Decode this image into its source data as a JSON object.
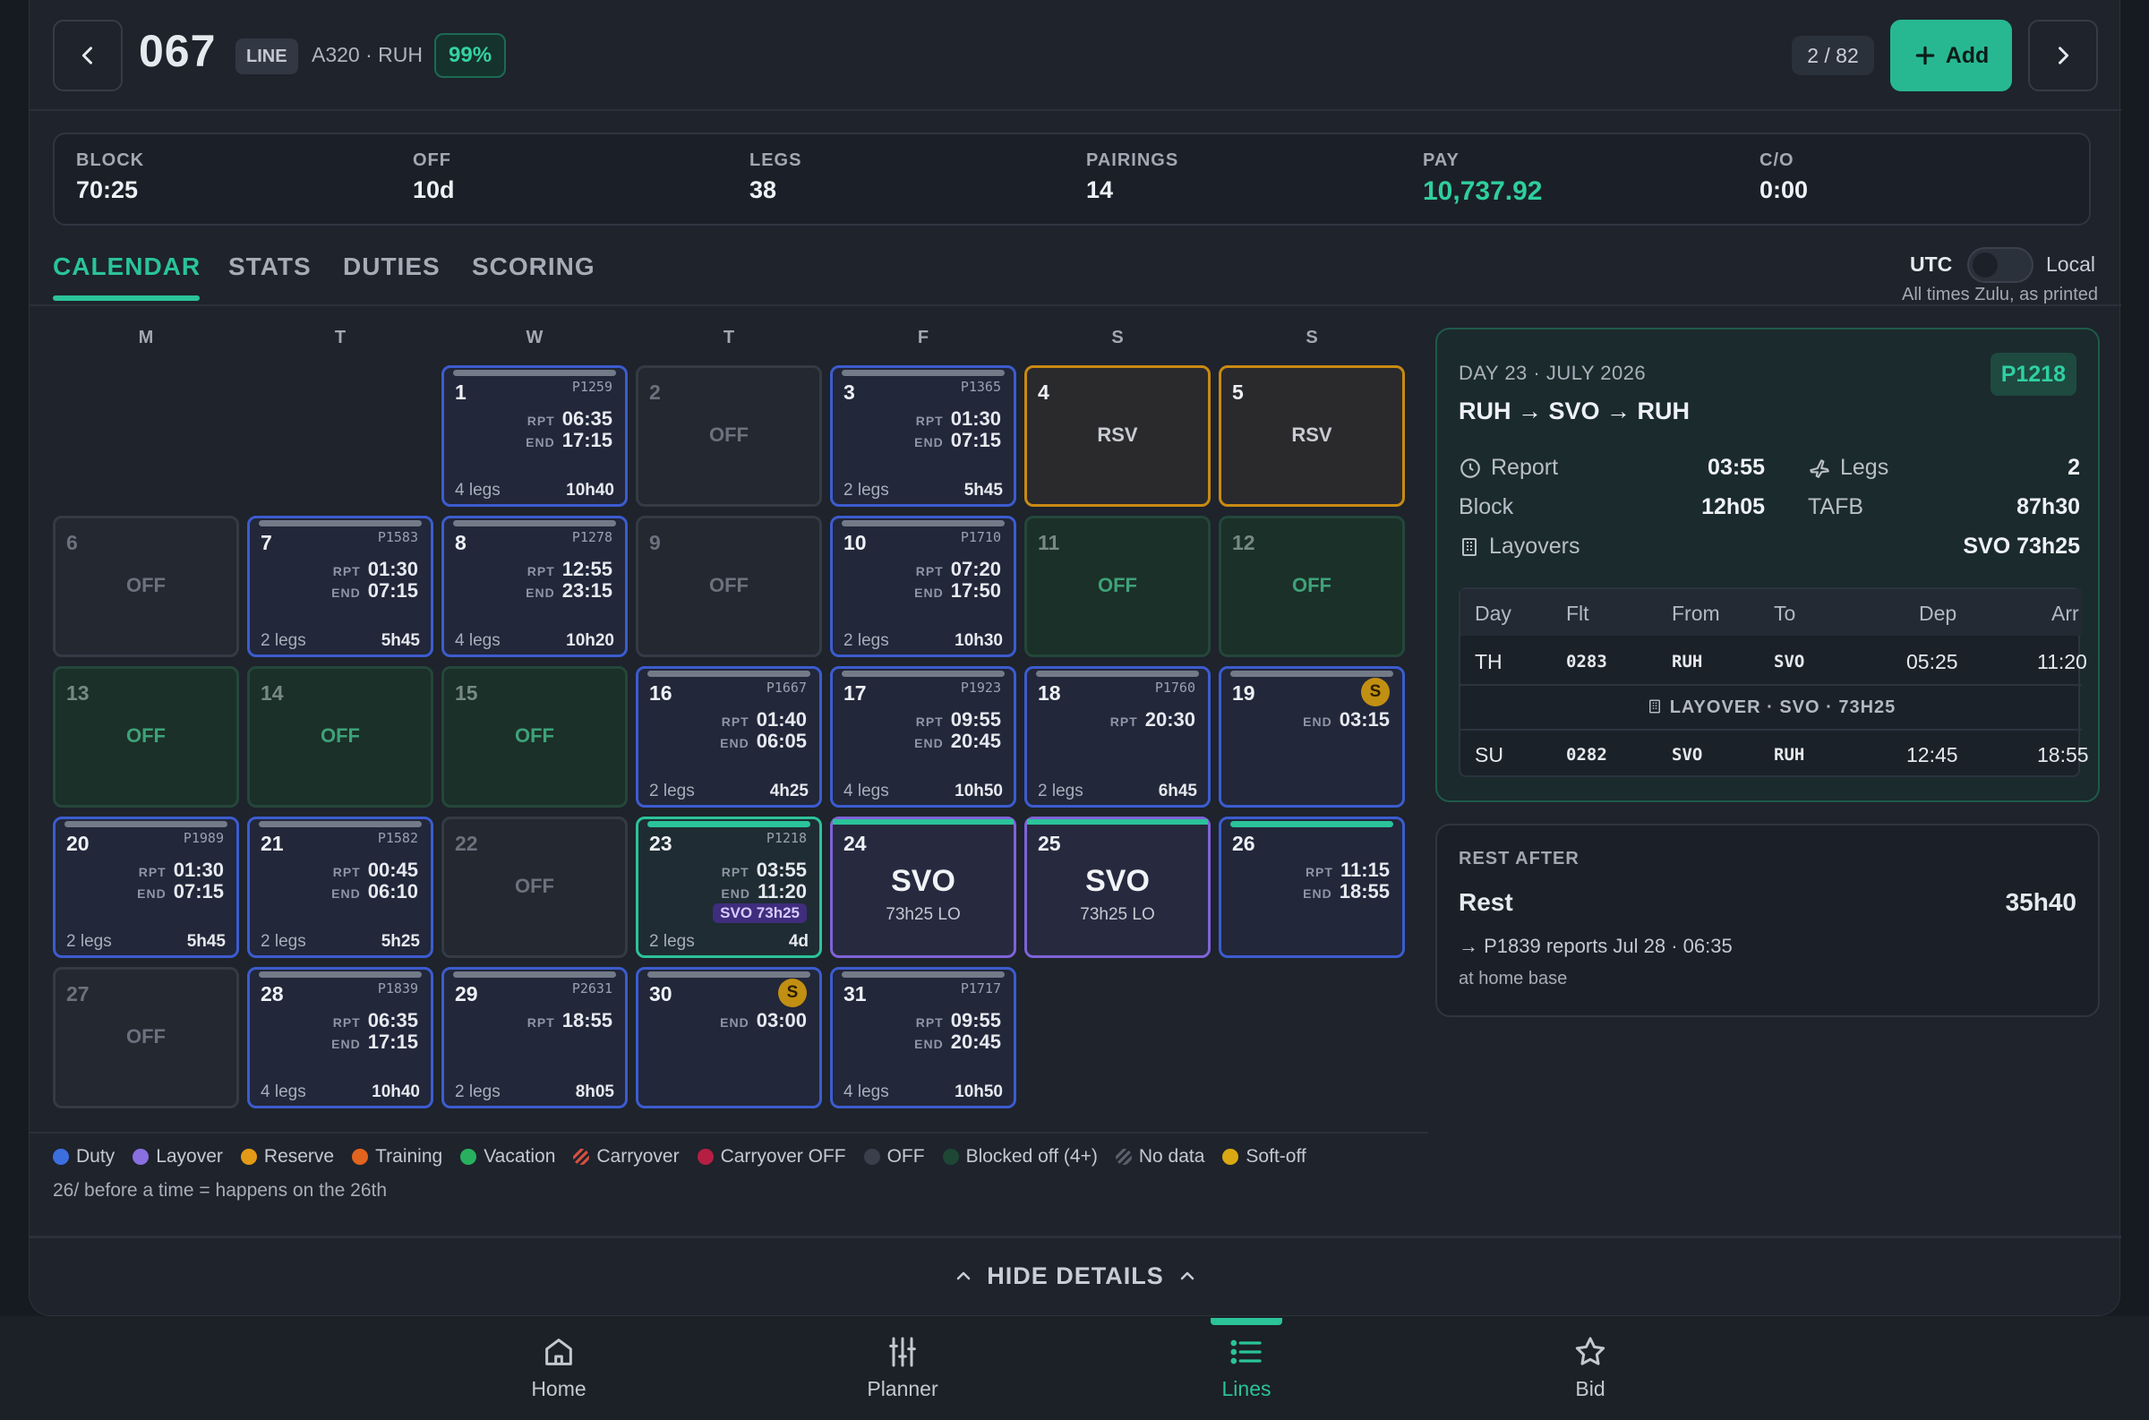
{
  "header": {
    "back_icon": "chevron-left-icon",
    "line_number": "067",
    "line_tag": "LINE",
    "subtitle": "A320 · RUH",
    "match_pct": "99%",
    "counter": "2 / 82",
    "add_label": "Add",
    "next_icon": "chevron-right-icon"
  },
  "stats": [
    {
      "label": "BLOCK",
      "value": "70:25"
    },
    {
      "label": "OFF",
      "value": "10d"
    },
    {
      "label": "LEGS",
      "value": "38"
    },
    {
      "label": "PAIRINGS",
      "value": "14"
    },
    {
      "label": "PAY",
      "value": "10,737.92"
    },
    {
      "label": "C/O",
      "value": "0:00"
    }
  ],
  "tabs": [
    "CALENDAR",
    "STATS",
    "DUTIES",
    "SCORING"
  ],
  "active_tab": "CALENDAR",
  "time_toggle": {
    "left": "UTC",
    "right": "Local",
    "note": "All times Zulu, as printed",
    "selected": "UTC"
  },
  "weekdays": [
    "M",
    "T",
    "W",
    "T",
    "F",
    "S",
    "S"
  ],
  "calendar": [
    {
      "day": "1",
      "type": "duty",
      "pairing": "P1259",
      "rpt": "06:35",
      "end": "17:15",
      "legs": "4 legs",
      "dur": "10h40"
    },
    {
      "day": "2",
      "type": "off",
      "label": "OFF"
    },
    {
      "day": "3",
      "type": "duty",
      "pairing": "P1365",
      "rpt": "01:30",
      "end": "07:15",
      "legs": "2 legs",
      "dur": "5h45"
    },
    {
      "day": "4",
      "type": "reserve",
      "label": "RSV"
    },
    {
      "day": "5",
      "type": "reserve",
      "label": "RSV"
    },
    {
      "day": "6",
      "type": "off",
      "label": "OFF"
    },
    {
      "day": "7",
      "type": "duty",
      "pairing": "P1583",
      "rpt": "01:30",
      "end": "07:15",
      "legs": "2 legs",
      "dur": "5h45"
    },
    {
      "day": "8",
      "type": "duty",
      "pairing": "P1278",
      "rpt": "12:55",
      "end": "23:15",
      "legs": "4 legs",
      "dur": "10h20"
    },
    {
      "day": "9",
      "type": "off",
      "label": "OFF"
    },
    {
      "day": "10",
      "type": "duty",
      "pairing": "P1710",
      "rpt": "07:20",
      "end": "17:50",
      "legs": "2 legs",
      "dur": "10h30"
    },
    {
      "day": "11",
      "type": "blocked",
      "label": "OFF"
    },
    {
      "day": "12",
      "type": "blocked",
      "label": "OFF"
    },
    {
      "day": "13",
      "type": "blocked",
      "label": "OFF"
    },
    {
      "day": "14",
      "type": "blocked",
      "label": "OFF"
    },
    {
      "day": "15",
      "type": "blocked",
      "label": "OFF"
    },
    {
      "day": "16",
      "type": "duty",
      "pairing": "P1667",
      "rpt": "01:40",
      "end": "06:05",
      "legs": "2 legs",
      "dur": "4h25"
    },
    {
      "day": "17",
      "type": "duty",
      "pairing": "P1923",
      "rpt": "09:55",
      "end": "20:45",
      "legs": "4 legs",
      "dur": "10h50"
    },
    {
      "day": "18",
      "type": "duty",
      "pairing": "P1760",
      "rpt": "20:30",
      "legs": "2 legs",
      "dur": "6h45"
    },
    {
      "day": "19",
      "type": "duty",
      "end": "03:15",
      "soft": "S"
    },
    {
      "day": "20",
      "type": "duty",
      "pairing": "P1989",
      "rpt": "01:30",
      "end": "07:15",
      "legs": "2 legs",
      "dur": "5h45"
    },
    {
      "day": "21",
      "type": "duty",
      "pairing": "P1582",
      "rpt": "00:45",
      "end": "06:10",
      "legs": "2 legs",
      "dur": "5h25"
    },
    {
      "day": "22",
      "type": "off",
      "label": "OFF"
    },
    {
      "day": "23",
      "type": "selected",
      "pairing": "P1218",
      "rpt": "03:55",
      "end": "11:20",
      "layover": "SVO 73h25",
      "legs": "2 legs",
      "dur": "4d"
    },
    {
      "day": "24",
      "type": "layover",
      "station": "SVO",
      "sub": "73h25 LO"
    },
    {
      "day": "25",
      "type": "layover",
      "station": "SVO",
      "sub": "73h25 LO"
    },
    {
      "day": "26",
      "type": "duty",
      "rpt": "11:15",
      "end": "18:55",
      "teal": true
    },
    {
      "day": "27",
      "type": "off",
      "label": "OFF"
    },
    {
      "day": "28",
      "type": "duty",
      "pairing": "P1839",
      "rpt": "06:35",
      "end": "17:15",
      "legs": "4 legs",
      "dur": "10h40"
    },
    {
      "day": "29",
      "type": "duty",
      "pairing": "P2631",
      "rpt": "18:55",
      "legs": "2 legs",
      "dur": "8h05"
    },
    {
      "day": "30",
      "type": "duty",
      "end": "03:00",
      "soft": "S"
    },
    {
      "day": "31",
      "type": "duty",
      "pairing": "P1717",
      "rpt": "09:55",
      "end": "20:45",
      "legs": "4 legs",
      "dur": "10h50"
    }
  ],
  "labels": {
    "rpt": "RPT",
    "end": "END"
  },
  "legend": [
    {
      "label": "Duty",
      "color": "#3d6ee0"
    },
    {
      "label": "Layover",
      "color": "#8a6fe0"
    },
    {
      "label": "Reserve",
      "color": "#e39a16"
    },
    {
      "label": "Training",
      "color": "#e2641f"
    },
    {
      "label": "Vacation",
      "color": "#28b05f"
    },
    {
      "label": "Carryover",
      "color": "#d4503f"
    },
    {
      "label": "Carryover OFF",
      "color": "#b51f43"
    },
    {
      "label": "OFF",
      "color": "#3a404b"
    },
    {
      "label": "Blocked off (4+)",
      "color": "#1f4735"
    },
    {
      "label": "No data",
      "color": "#4b515b"
    },
    {
      "label": "Soft-off",
      "color": "#d9a813"
    }
  ],
  "legend_note": "26/ before a time = happens on the 26th",
  "day_detail": {
    "date": "DAY 23 · JULY 2026",
    "pairing": "P1218",
    "route": "RUH → SVO → RUH",
    "report_label": "Report",
    "report": "03:55",
    "legs_label": "Legs",
    "legs": "2",
    "block_label": "Block",
    "block": "12h05",
    "tafb_label": "TAFB",
    "tafb": "87h30",
    "layovers_label": "Layovers",
    "layovers": "SVO 73h25",
    "columns": [
      "Day",
      "Flt",
      "From",
      "To",
      "Dep",
      "Arr"
    ],
    "flights": [
      {
        "day": "TH",
        "flt": "0283",
        "from": "RUH",
        "to": "SVO",
        "dep": "05:25",
        "arr": "11:20"
      },
      {
        "day": "SU",
        "flt": "0282",
        "from": "SVO",
        "to": "RUH",
        "dep": "12:45",
        "arr": "18:55"
      }
    ],
    "layover_row": "LAYOVER · SVO · 73H25"
  },
  "rest": {
    "heading": "REST AFTER",
    "label": "Rest",
    "value": "35h40",
    "next": "→ P1839 reports Jul 28 · 06:35",
    "note": "at home base"
  },
  "hide_details": "HIDE DETAILS",
  "nav": [
    {
      "label": "Home",
      "icon": "home-icon"
    },
    {
      "label": "Planner",
      "icon": "sliders-icon"
    },
    {
      "label": "Lines",
      "icon": "list-icon",
      "active": true
    },
    {
      "label": "Bid",
      "icon": "star-icon"
    }
  ],
  "colors": {
    "accent": "#2ac39a",
    "duty": "#3c5ccf",
    "reserve": "#c98a12",
    "layover": "#7f63d8",
    "pay": "#2fcf9d"
  }
}
